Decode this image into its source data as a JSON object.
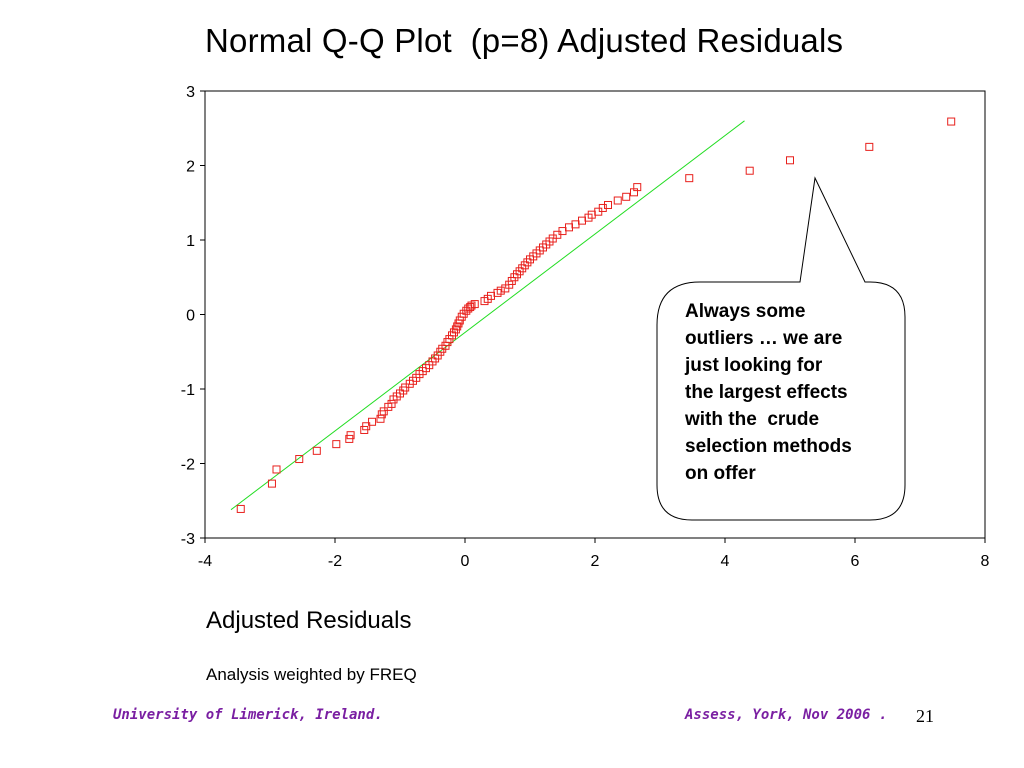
{
  "title": "Normal Q-Q Plot  (p=8) Adjusted Residuals",
  "xlabel": "Adjusted Residuals",
  "note": "Analysis weighted by FREQ",
  "callout": {
    "lines": [
      "Always some",
      "outliers … we are",
      "just looking for",
      "the largest effects",
      "with the  crude",
      "selection methods",
      "on offer"
    ]
  },
  "footer": {
    "left": "University of Limerick, Ireland.",
    "right": "Assess, York, Nov 2006 .",
    "page": "21"
  },
  "colors": {
    "points": "#e8201c",
    "line": "#22dd22",
    "footer": "#7a1fa2"
  },
  "chart_data": {
    "type": "scatter",
    "title": "Normal Q-Q Plot  (p=8) Adjusted Residuals",
    "xlabel": "Adjusted Residuals",
    "ylabel": "",
    "xlim": [
      -4,
      8
    ],
    "ylim": [
      -3,
      3
    ],
    "xticks": [
      -4,
      -2,
      0,
      2,
      4,
      6,
      8
    ],
    "yticks": [
      -3,
      -2,
      -1,
      0,
      1,
      2,
      3
    ],
    "grid": false,
    "reference_line": {
      "x": [
        -3.6,
        4.3
      ],
      "y": [
        -2.62,
        2.6
      ]
    },
    "points": {
      "x": [
        -3.45,
        -2.97,
        -2.9,
        -2.55,
        -2.28,
        -1.98,
        -1.78,
        -1.76,
        -1.55,
        -1.52,
        -1.43,
        -1.3,
        -1.28,
        -1.25,
        -1.18,
        -1.13,
        -1.1,
        -1.05,
        -1.0,
        -0.95,
        -0.92,
        -0.85,
        -0.8,
        -0.75,
        -0.7,
        -0.65,
        -0.6,
        -0.55,
        -0.5,
        -0.46,
        -0.42,
        -0.38,
        -0.35,
        -0.3,
        -0.27,
        -0.24,
        -0.2,
        -0.17,
        -0.14,
        -0.12,
        -0.1,
        -0.08,
        -0.05,
        -0.02,
        0.02,
        0.05,
        0.08,
        0.1,
        0.15,
        0.3,
        0.35,
        0.4,
        0.5,
        0.55,
        0.62,
        0.68,
        0.72,
        0.76,
        0.8,
        0.84,
        0.88,
        0.92,
        0.96,
        1.0,
        1.05,
        1.1,
        1.15,
        1.2,
        1.25,
        1.3,
        1.35,
        1.42,
        1.5,
        1.6,
        1.7,
        1.8,
        1.9,
        1.95,
        2.05,
        2.12,
        2.2,
        2.35,
        2.48,
        2.6,
        2.65,
        3.45,
        4.38,
        5.0,
        6.22,
        7.48
      ],
      "y": [
        -2.61,
        -2.27,
        -2.08,
        -1.94,
        -1.83,
        -1.74,
        -1.67,
        -1.62,
        -1.55,
        -1.5,
        -1.44,
        -1.4,
        -1.34,
        -1.3,
        -1.24,
        -1.2,
        -1.14,
        -1.1,
        -1.06,
        -1.02,
        -0.98,
        -0.93,
        -0.89,
        -0.85,
        -0.8,
        -0.76,
        -0.72,
        -0.68,
        -0.63,
        -0.59,
        -0.55,
        -0.5,
        -0.46,
        -0.42,
        -0.37,
        -0.33,
        -0.28,
        -0.24,
        -0.2,
        -0.16,
        -0.12,
        -0.08,
        -0.03,
        0.01,
        0.05,
        0.08,
        0.1,
        0.12,
        0.14,
        0.18,
        0.21,
        0.25,
        0.29,
        0.32,
        0.35,
        0.4,
        0.45,
        0.5,
        0.54,
        0.58,
        0.62,
        0.66,
        0.7,
        0.74,
        0.78,
        0.82,
        0.86,
        0.9,
        0.94,
        0.98,
        1.02,
        1.07,
        1.12,
        1.17,
        1.21,
        1.26,
        1.3,
        1.34,
        1.38,
        1.43,
        1.47,
        1.53,
        1.58,
        1.64,
        1.71,
        1.83,
        1.93,
        2.07,
        2.25,
        2.59
      ]
    }
  }
}
